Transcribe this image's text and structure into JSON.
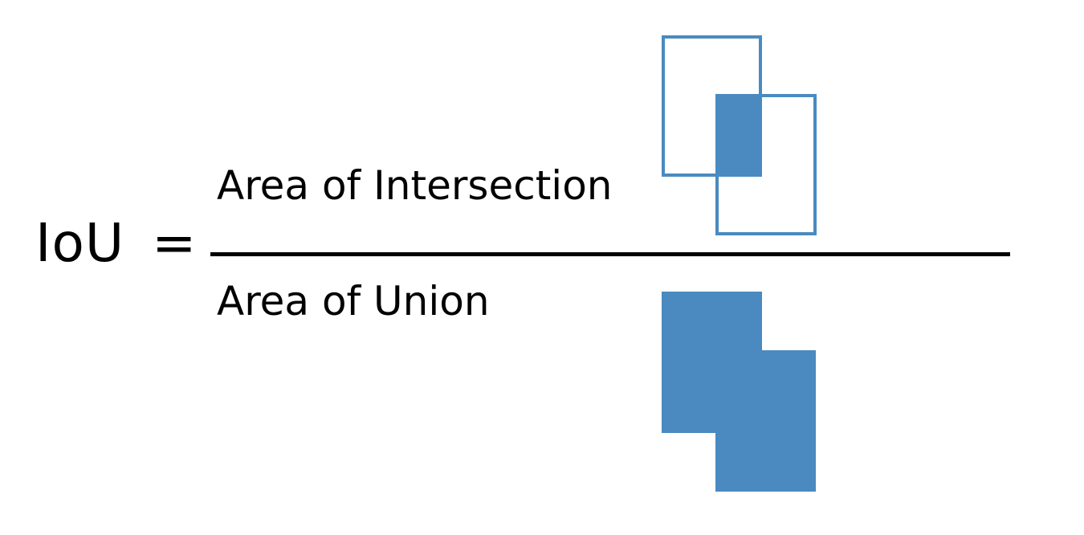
{
  "formula": {
    "lhs": "IoU",
    "equals_sign": "=",
    "numerator_label": "Area of Intersection",
    "denominator_label": "Area of Union"
  },
  "colors": {
    "box_stroke": "#4a8ac0",
    "fill": "#4a8ac0",
    "text": "#000000",
    "background": "#ffffff"
  },
  "icons": {
    "intersection_illustration": "two-overlapping-boxes-intersection-icon",
    "union_illustration": "two-overlapping-boxes-union-icon"
  }
}
